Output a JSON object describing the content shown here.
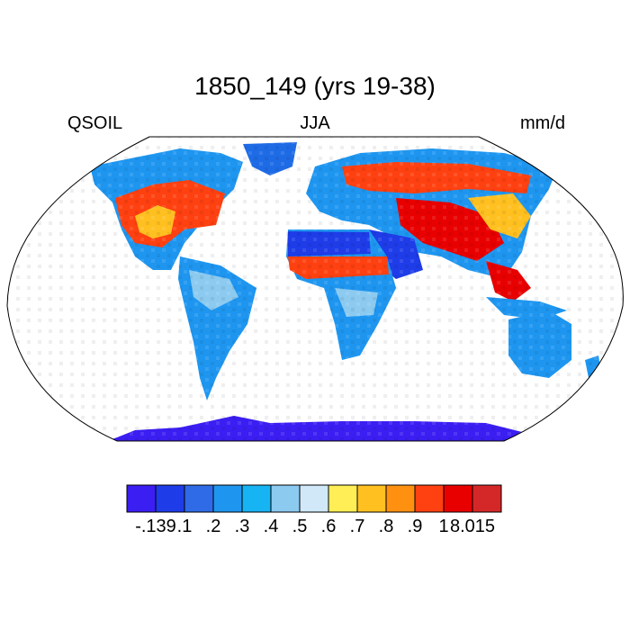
{
  "title": "1850_149 (yrs 19-38)",
  "left_label": "QSOIL",
  "center_label": "JJA",
  "right_label": "mm/d",
  "colorbar": {
    "colors": [
      "#3b1ef2",
      "#1e3ce8",
      "#2f6be6",
      "#1e96f0",
      "#17b4f4",
      "#8ccaf0",
      "#d0e8f8",
      "#ffee55",
      "#ffc020",
      "#ff9010",
      "#ff4010",
      "#e80000",
      "#d42828"
    ],
    "labels": [
      "-.139",
      ".1",
      ".2",
      ".3",
      ".4",
      ".5",
      ".6",
      ".7",
      ".8",
      ".9",
      "1",
      "8.015"
    ]
  },
  "colors": {
    "ocean": "#ffffff",
    "land_low": "#3b1ef2",
    "land_mid": "#1e96f0",
    "land_high": "#ff4010",
    "coast": "#000000"
  }
}
